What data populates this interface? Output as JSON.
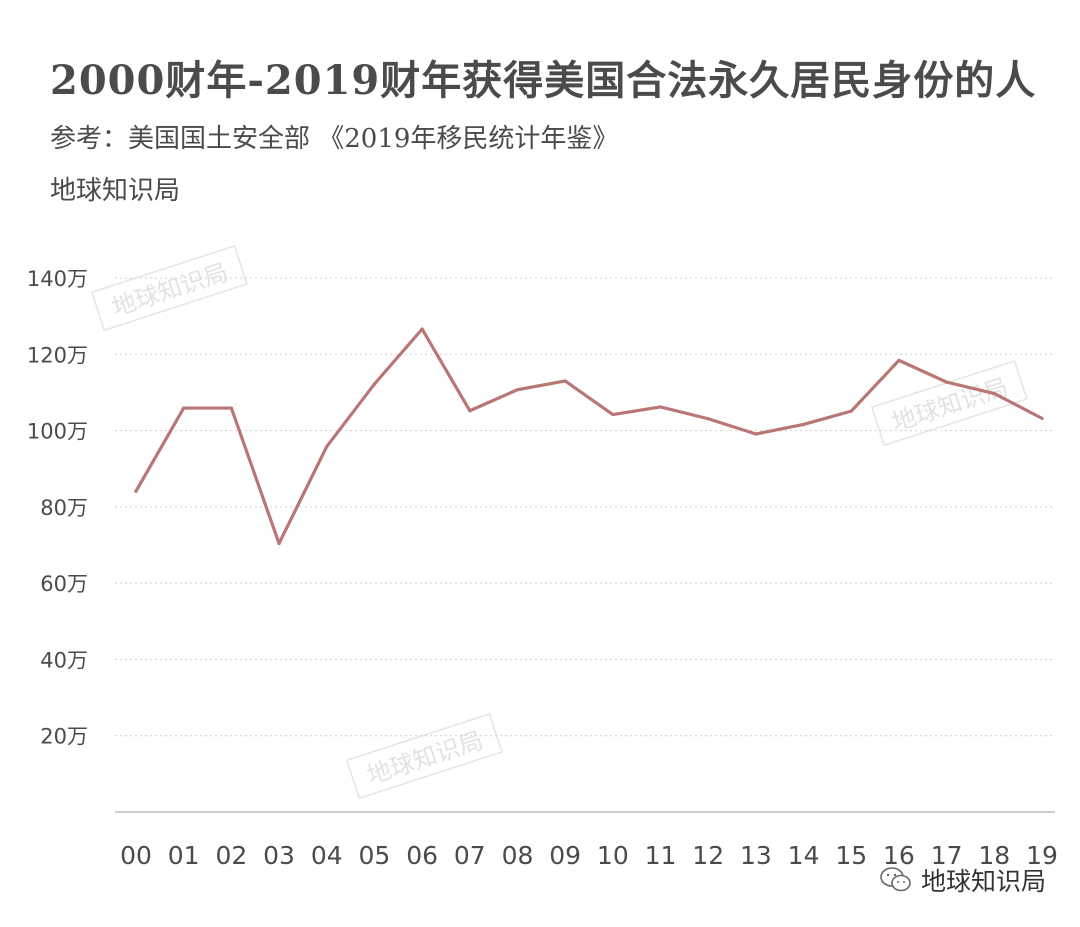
{
  "title": "2000财年-2019财年获得美国合法永久居民身份的人",
  "subtitle": "参考：美国国土安全部 《2019年移民统计年鉴》",
  "brand": "地球知识局",
  "footer_brand": "地球知识局",
  "watermark_text": "地球知识局",
  "colors": {
    "line": "#b87675",
    "grid": "#cfcfcf",
    "axis": "#bdbdbd",
    "text": "#4b4b4b"
  },
  "chart_data": {
    "type": "line",
    "categories": [
      "00",
      "01",
      "02",
      "03",
      "04",
      "05",
      "06",
      "07",
      "08",
      "09",
      "10",
      "11",
      "12",
      "13",
      "14",
      "15",
      "16",
      "17",
      "18",
      "19"
    ],
    "series": [
      {
        "values": [
          84.1,
          105.9,
          105.9,
          70.4,
          95.8,
          112.2,
          126.6,
          105.2,
          110.7,
          113.0,
          104.2,
          106.2,
          103.1,
          99.1,
          101.6,
          105.1,
          118.4,
          112.7,
          109.7,
          103.2
        ]
      }
    ],
    "yticks": [
      20,
      40,
      60,
      80,
      100,
      120,
      140
    ],
    "ytick_labels": [
      "20万",
      "40万",
      "60万",
      "80万",
      "100万",
      "120万",
      "140万"
    ],
    "ylim": [
      0,
      140
    ],
    "grid": true
  }
}
